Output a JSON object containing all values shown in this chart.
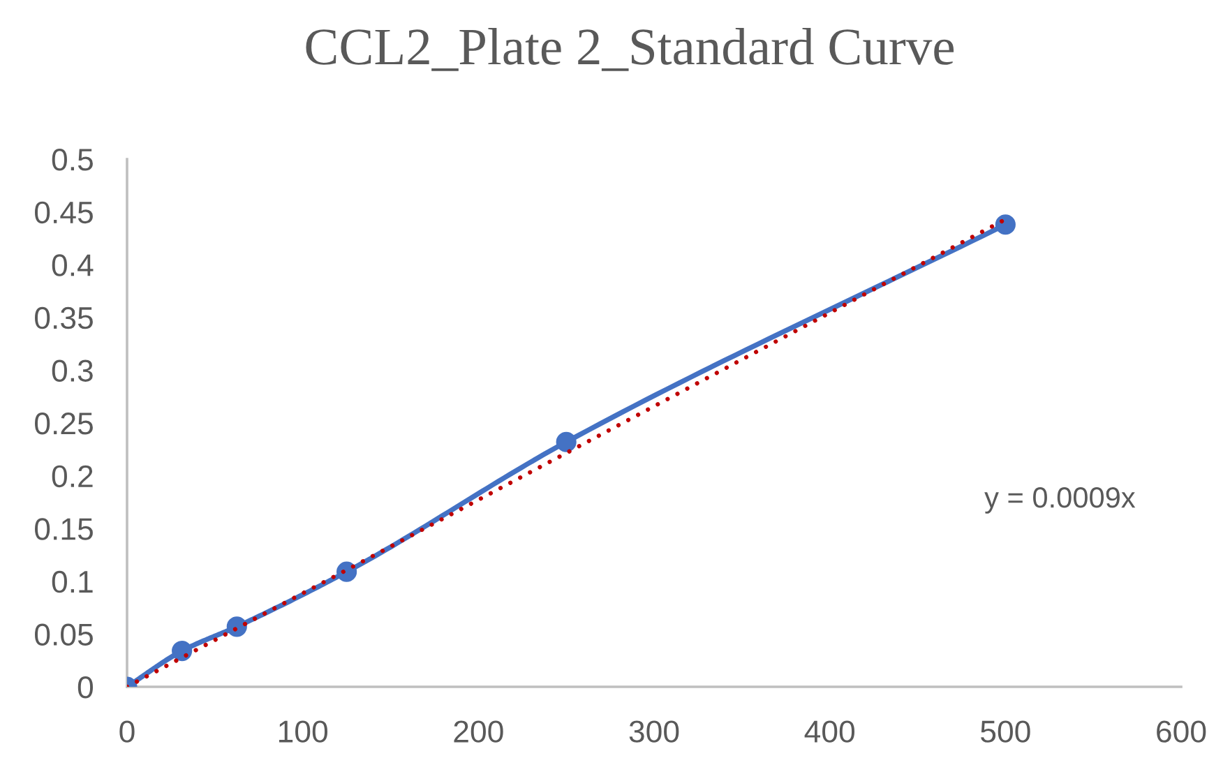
{
  "chart_data": {
    "type": "line",
    "title": "CCL2_Plate 2_Standard Curve",
    "series": [
      {
        "x": [
          0,
          31.25,
          62.5,
          125,
          250,
          500
        ],
        "values": [
          0,
          0.034,
          0.057,
          0.109,
          0.232,
          0.438
        ],
        "color": "#4472c4",
        "marker": "circle",
        "line_style": "solid"
      },
      {
        "x": [
          0,
          500
        ],
        "values": [
          0,
          0.443
        ],
        "color": "#c00000",
        "marker": "none",
        "line_style": "dotted"
      }
    ],
    "xlim": [
      0,
      600
    ],
    "xticks": [
      0,
      100,
      200,
      300,
      400,
      500,
      600
    ],
    "ylim": [
      0,
      0.5
    ],
    "yticks": [
      0,
      0.05,
      0.1,
      0.15,
      0.2,
      0.25,
      0.3,
      0.35,
      0.4,
      0.45,
      0.5
    ],
    "annotations": [
      "y = 0.0009x"
    ]
  }
}
